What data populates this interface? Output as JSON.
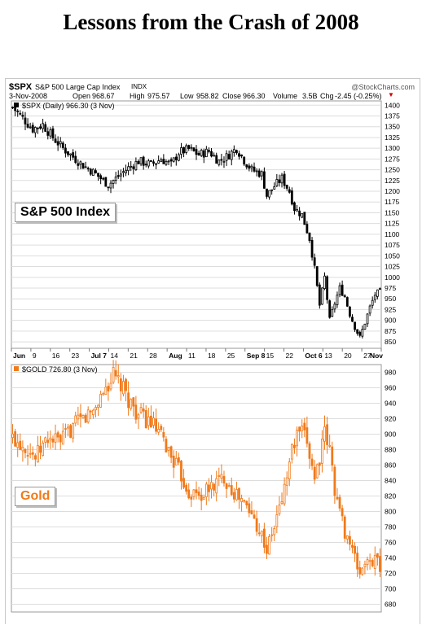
{
  "title": "Lessons from the Crash of 2008",
  "header": {
    "symbol": "$SPX",
    "name": "S&P 500 Large Cap Index",
    "exchange": "INDX",
    "source": "@StockCharts.com",
    "date": "3-Nov-2008",
    "open_label": "Open",
    "open": "968.67",
    "high_label": "High",
    "high": "975.57",
    "low_label": "Low",
    "low": "958.82",
    "close_label": "Close",
    "close": "966.30",
    "volume_label": "Volume",
    "volume": "3.5B",
    "chg_label": "Chg",
    "chg": "-2.45 (-0.25%)"
  },
  "colors": {
    "spx": "#000000",
    "gold": "#f07a1a",
    "grid": "#dddddd",
    "gold_label": "#f07a1a"
  },
  "chart_data": [
    {
      "type": "candlestick",
      "legend": "$SPX (Daily) 966.30 (3 Nov)",
      "label_box": "S&P 500 Index",
      "ylim": [
        835,
        1410
      ],
      "ytick_labels": [
        "1400",
        "1375",
        "1350",
        "1325",
        "1300",
        "1275",
        "1250",
        "1225",
        "1200",
        "1175",
        "1150",
        "1125",
        "1100",
        "1075",
        "1050",
        "1025",
        "1000",
        "975",
        "950",
        "925",
        "900",
        "875",
        "850"
      ],
      "xtick_labels": [
        "Jun",
        "9",
        "16",
        "23",
        "Jul 7",
        "14",
        "21",
        "28",
        "Aug",
        "11",
        "18",
        "25",
        "Sep 8",
        "15",
        "22",
        "Oct 6",
        "13",
        "20",
        "27",
        "Nov"
      ],
      "anchors": [
        [
          0,
          1395
        ],
        [
          4,
          1370
        ],
        [
          8,
          1345
        ],
        [
          12,
          1355
        ],
        [
          16,
          1325
        ],
        [
          20,
          1300
        ],
        [
          24,
          1280
        ],
        [
          28,
          1260
        ],
        [
          32,
          1245
        ],
        [
          36,
          1225
        ],
        [
          38,
          1215
        ],
        [
          41,
          1230
        ],
        [
          45,
          1250
        ],
        [
          50,
          1270
        ],
        [
          55,
          1262
        ],
        [
          59,
          1275
        ],
        [
          63,
          1262
        ],
        [
          66,
          1290
        ],
        [
          70,
          1298
        ],
        [
          74,
          1285
        ],
        [
          78,
          1293
        ],
        [
          82,
          1270
        ],
        [
          85,
          1280
        ],
        [
          89,
          1300
        ],
        [
          92,
          1272
        ],
        [
          95,
          1250
        ],
        [
          99,
          1240
        ],
        [
          101,
          1190
        ],
        [
          104,
          1212
        ],
        [
          107,
          1230
        ],
        [
          110,
          1200
        ],
        [
          112,
          1160
        ],
        [
          115,
          1145
        ],
        [
          118,
          1090
        ],
        [
          120,
          1020
        ],
        [
          122,
          935
        ],
        [
          124,
          1000
        ],
        [
          126,
          900
        ],
        [
          128,
          940
        ],
        [
          130,
          975
        ],
        [
          132,
          955
        ],
        [
          134,
          915
        ],
        [
          136,
          885
        ],
        [
          138,
          860
        ],
        [
          140,
          895
        ],
        [
          142,
          930
        ],
        [
          144,
          960
        ],
        [
          146,
          966
        ]
      ]
    },
    {
      "type": "candlestick",
      "legend": "$GOLD 726.80 (3 Nov)",
      "label_box": "Gold",
      "ylim": [
        670,
        990
      ],
      "ytick_labels": [
        "980",
        "960",
        "940",
        "920",
        "900",
        "880",
        "860",
        "840",
        "820",
        "800",
        "780",
        "760",
        "740",
        "720",
        "700",
        "680"
      ],
      "anchors": [
        [
          0,
          895
        ],
        [
          5,
          885
        ],
        [
          9,
          870
        ],
        [
          14,
          895
        ],
        [
          19,
          890
        ],
        [
          24,
          910
        ],
        [
          28,
          920
        ],
        [
          32,
          930
        ],
        [
          36,
          955
        ],
        [
          40,
          975
        ],
        [
          43,
          962
        ],
        [
          46,
          945
        ],
        [
          50,
          925
        ],
        [
          55,
          915
        ],
        [
          60,
          890
        ],
        [
          65,
          860
        ],
        [
          70,
          825
        ],
        [
          75,
          820
        ],
        [
          80,
          835
        ],
        [
          84,
          845
        ],
        [
          88,
          825
        ],
        [
          92,
          810
        ],
        [
          96,
          790
        ],
        [
          99,
          770
        ],
        [
          101,
          750
        ],
        [
          104,
          780
        ],
        [
          108,
          830
        ],
        [
          111,
          880
        ],
        [
          114,
          905
        ],
        [
          117,
          890
        ],
        [
          120,
          845
        ],
        [
          122,
          870
        ],
        [
          124,
          900
        ],
        [
          126,
          880
        ],
        [
          128,
          830
        ],
        [
          130,
          800
        ],
        [
          132,
          775
        ],
        [
          134,
          760
        ],
        [
          136,
          738
        ],
        [
          138,
          720
        ],
        [
          140,
          735
        ],
        [
          142,
          730
        ],
        [
          144,
          745
        ],
        [
          146,
          727
        ]
      ]
    }
  ]
}
